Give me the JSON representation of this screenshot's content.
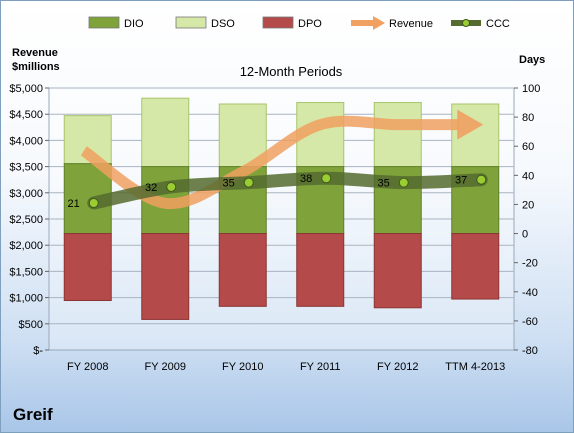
{
  "company": "Greif",
  "chart_data": {
    "type": "bar",
    "title": "12-Month Periods",
    "left_axis_title": [
      "Revenue",
      "$millions"
    ],
    "right_axis_title": "Days",
    "categories": [
      "FY 2008",
      "FY 2009",
      "FY 2010",
      "FY 2011",
      "FY 2012",
      "TTM 4-2013"
    ],
    "left_axis": {
      "range": [
        0,
        5000
      ],
      "ticks": [
        0,
        500,
        1000,
        1500,
        2000,
        2500,
        3000,
        3500,
        4000,
        4500,
        5000
      ],
      "tick_labels": [
        "$-",
        "$500",
        "$1,000",
        "$1,500",
        "$2,000",
        "$2,500",
        "$3,000",
        "$3,500",
        "$4,000",
        "$4,500",
        "$5,000"
      ]
    },
    "right_axis": {
      "range": [
        -80,
        100
      ],
      "ticks": [
        -80,
        -60,
        -40,
        -20,
        0,
        20,
        40,
        60,
        80,
        100
      ],
      "tick_labels": [
        "-80",
        "-60",
        "-40",
        "-20",
        "0",
        "20",
        "40",
        "60",
        "80",
        "100"
      ]
    },
    "legend": [
      "DIO",
      "DSO",
      "DPO",
      "Revenue",
      "CCC"
    ],
    "legend_position": "top",
    "grid": true,
    "series": [
      {
        "name": "DIO",
        "type": "stacked-bar",
        "axis": "right",
        "color": "#7fa33a",
        "values": [
          48,
          46,
          46,
          46,
          46,
          46
        ]
      },
      {
        "name": "DSO",
        "type": "stacked-bar",
        "axis": "right",
        "color": "#d6e8a8",
        "values": [
          33,
          47,
          43,
          44,
          44,
          43
        ]
      },
      {
        "name": "DPO",
        "type": "stacked-bar",
        "axis": "right",
        "color": "#b54a4a",
        "values": [
          -46,
          -59,
          -50,
          -50,
          -51,
          -45
        ]
      },
      {
        "name": "Revenue",
        "type": "line",
        "axis": "left",
        "color": "#f0a060",
        "values": [
          3800,
          2800,
          3400,
          4300,
          4300,
          4300
        ]
      },
      {
        "name": "CCC",
        "type": "line",
        "axis": "right",
        "color": "#556b2f",
        "values": [
          21,
          32,
          35,
          38,
          35,
          37
        ],
        "labels": [
          "21",
          "32",
          "35",
          "38",
          "35",
          "37"
        ]
      }
    ]
  }
}
